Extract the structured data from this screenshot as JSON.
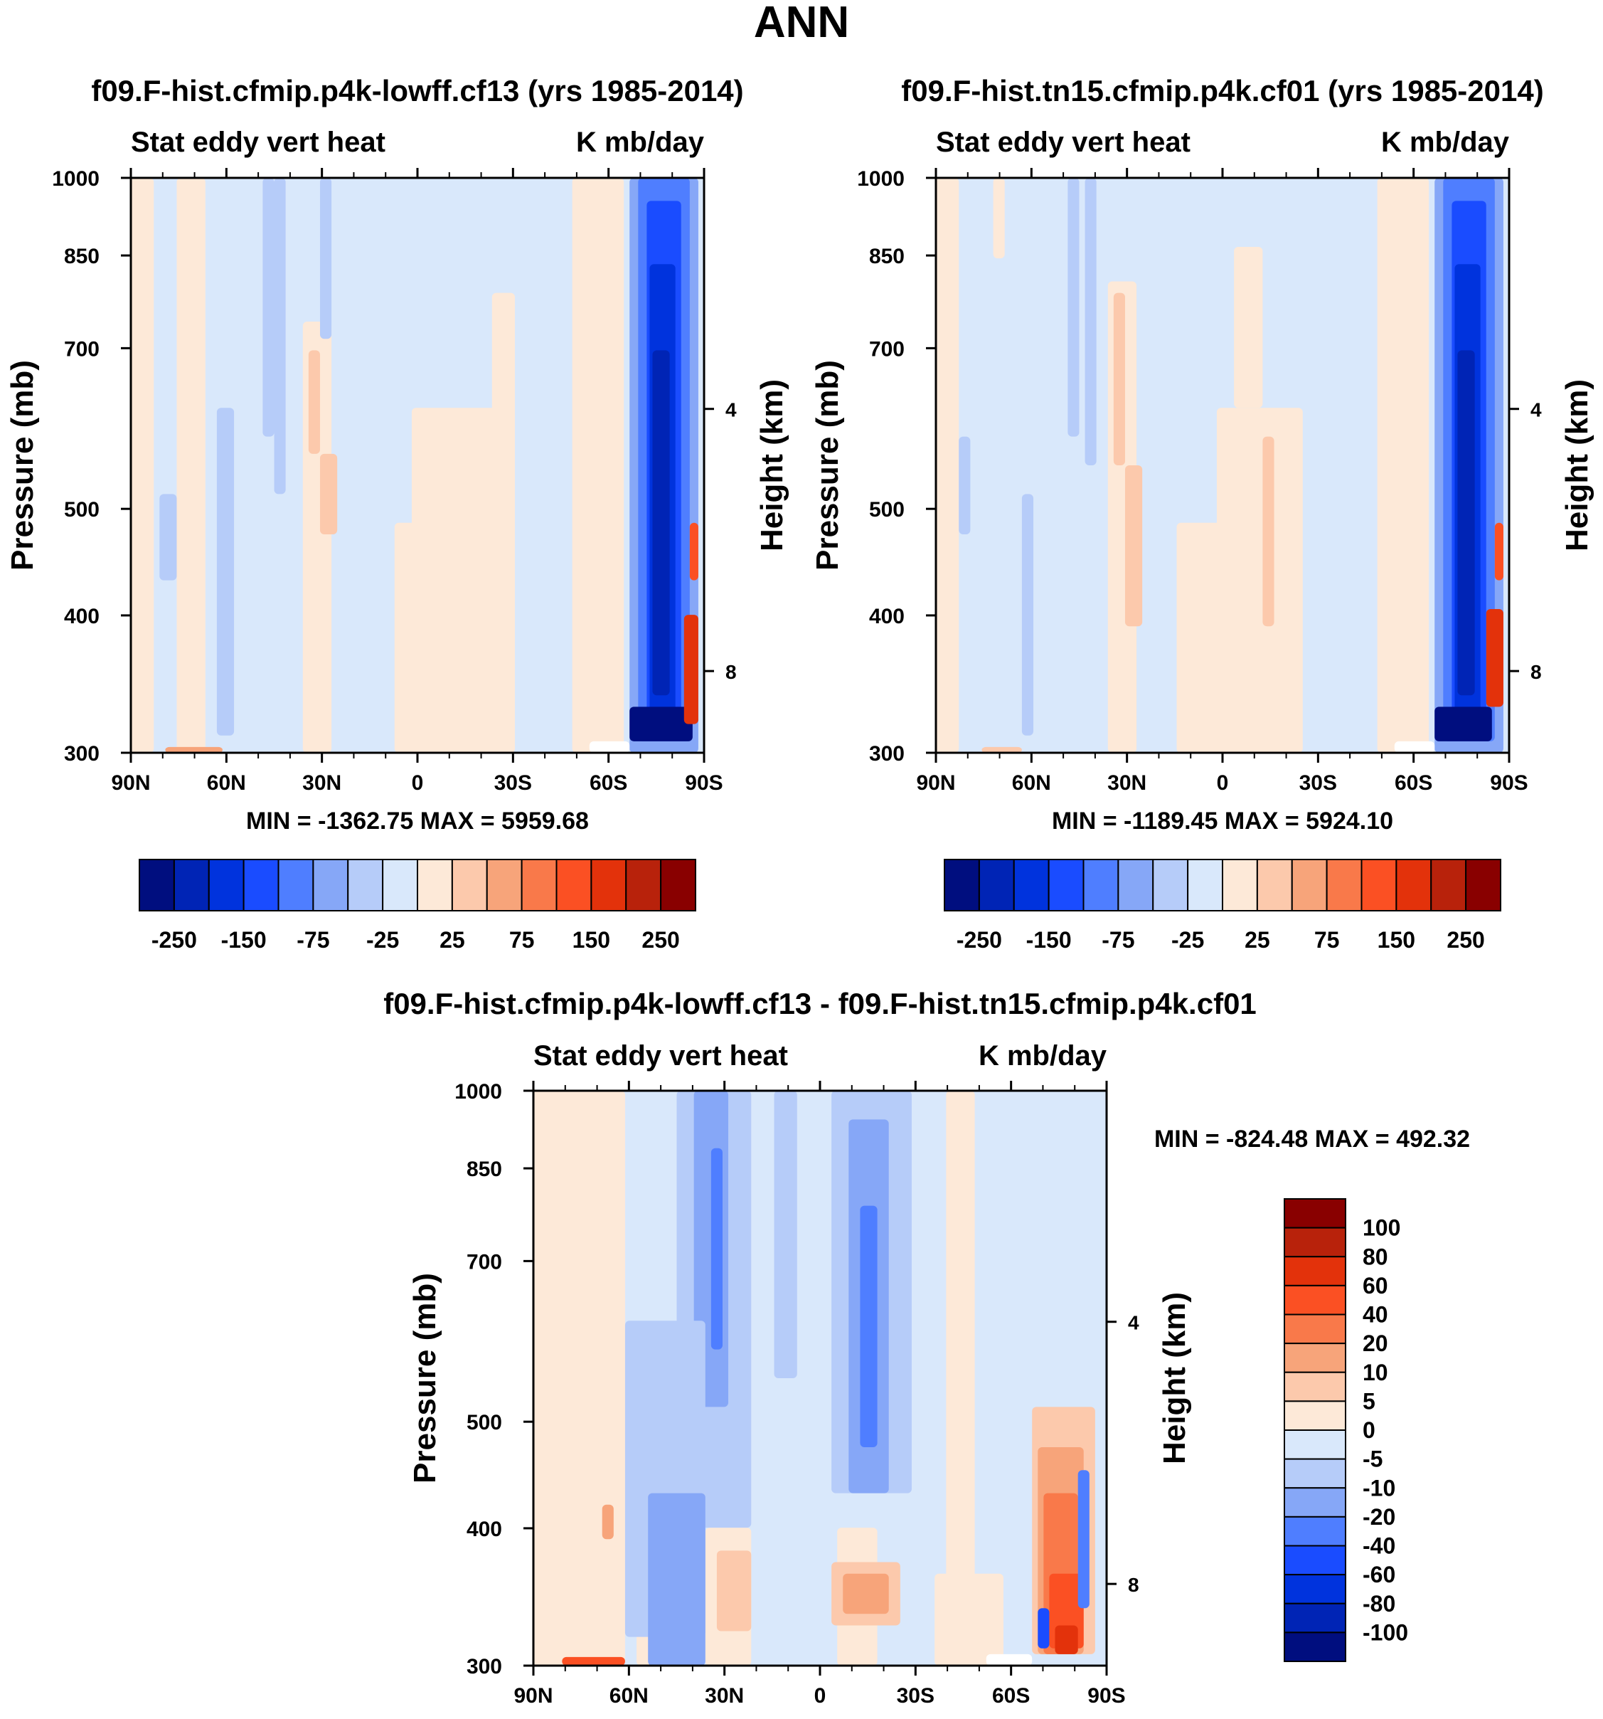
{
  "figure_title": "ANN",
  "colors": {
    "panel_scale": [
      "#000e7f",
      "#0024b5",
      "#0033dd",
      "#1a4cff",
      "#4f7eff",
      "#86a7f7",
      "#b6ccf9",
      "#d9e8fb",
      "#fde9d8",
      "#fcc9ac",
      "#f7a47a",
      "#f9794a",
      "#fb5023",
      "#e3320b",
      "#b8220b",
      "#890000"
    ],
    "diff_scale": [
      "#000e7f",
      "#0024b5",
      "#0033dd",
      "#1a4cff",
      "#4f7eff",
      "#86a7f7",
      "#b6ccf9",
      "#d9e8fb",
      "#fde9d8",
      "#fcc9ac",
      "#f7a47a",
      "#f9794a",
      "#fb5023",
      "#e3320b",
      "#b8220b",
      "#890000"
    ]
  },
  "chart_data": [
    {
      "type": "heatmap",
      "id": "panel-a",
      "title": "f09.F-hist.cfmip.p4k-lowff.cf13 (yrs 1985-2014)",
      "left_label": "Stat eddy vert heat",
      "right_label": "K mb/day",
      "ylabel": "Pressure (mb)",
      "y2label": "Height (km)",
      "x_ticks": [
        "90N",
        "60N",
        "30N",
        "0",
        "30S",
        "60S",
        "90S"
      ],
      "xlim": [
        90,
        -90
      ],
      "y_ticks": [
        "300",
        "400",
        "500",
        "700",
        "850",
        "1000"
      ],
      "y_tick_values": [
        300,
        400,
        500,
        700,
        850,
        1000
      ],
      "ylim": [
        1000,
        300
      ],
      "y2_ticks": [
        "8",
        "4"
      ],
      "y2_tick_values": [
        8,
        4
      ],
      "stats": "MIN = -1362.75   MAX = 5959.68",
      "colorbar_labels": [
        "-250",
        "-150",
        "-75",
        "-25",
        "25",
        "75",
        "150",
        "250"
      ],
      "colorbar_orientation": "horizontal"
    },
    {
      "type": "heatmap",
      "id": "panel-b",
      "title": "f09.F-hist.tn15.cfmip.p4k.cf01 (yrs 1985-2014)",
      "left_label": "Stat eddy vert heat",
      "right_label": "K mb/day",
      "ylabel": "Pressure (mb)",
      "y2label": "Height (km)",
      "x_ticks": [
        "90N",
        "60N",
        "30N",
        "0",
        "30S",
        "60S",
        "90S"
      ],
      "xlim": [
        90,
        -90
      ],
      "y_ticks": [
        "300",
        "400",
        "500",
        "700",
        "850",
        "1000"
      ],
      "y_tick_values": [
        300,
        400,
        500,
        700,
        850,
        1000
      ],
      "ylim": [
        1000,
        300
      ],
      "y2_ticks": [
        "8",
        "4"
      ],
      "y2_tick_values": [
        8,
        4
      ],
      "stats": "MIN = -1189.45   MAX = 5924.10",
      "colorbar_labels": [
        "-250",
        "-150",
        "-75",
        "-25",
        "25",
        "75",
        "150",
        "250"
      ],
      "colorbar_orientation": "horizontal"
    },
    {
      "type": "heatmap",
      "id": "panel-diff",
      "title": "f09.F-hist.cfmip.p4k-lowff.cf13 - f09.F-hist.tn15.cfmip.p4k.cf01",
      "left_label": "Stat eddy vert heat",
      "right_label": "K mb/day",
      "ylabel": "Pressure (mb)",
      "y2label": "Height (km)",
      "x_ticks": [
        "90N",
        "60N",
        "30N",
        "0",
        "30S",
        "60S",
        "90S"
      ],
      "xlim": [
        90,
        -90
      ],
      "y_ticks": [
        "300",
        "400",
        "500",
        "700",
        "850",
        "1000"
      ],
      "y_tick_values": [
        300,
        400,
        500,
        700,
        850,
        1000
      ],
      "ylim": [
        1000,
        300
      ],
      "y2_ticks": [
        "8",
        "4"
      ],
      "y2_tick_values": [
        8,
        4
      ],
      "stats": "MIN = -824.48   MAX = 492.32",
      "colorbar_labels": [
        "100",
        "80",
        "60",
        "40",
        "20",
        "10",
        "5",
        "0",
        "-5",
        "-10",
        "-20",
        "-40",
        "-60",
        "-80",
        "-100"
      ],
      "colorbar_orientation": "vertical"
    }
  ]
}
